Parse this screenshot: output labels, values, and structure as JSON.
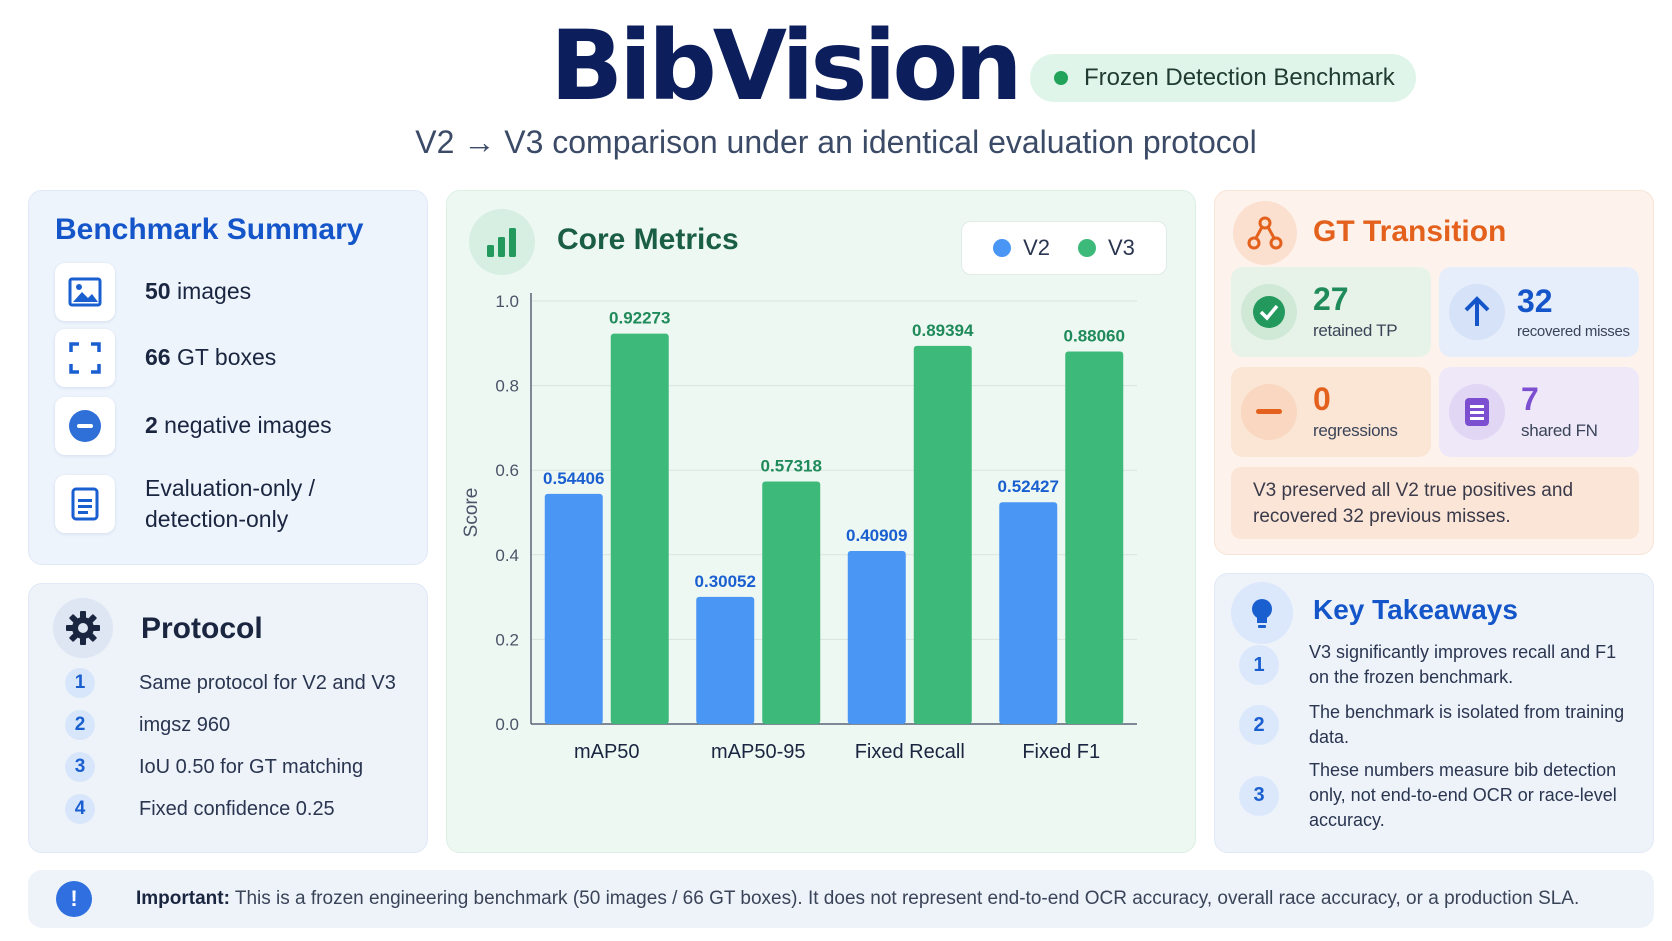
{
  "header": {
    "title": "BibVision",
    "badge": "Frozen Detection Benchmark",
    "subtitle": "V2 → V3 comparison under an identical evaluation protocol"
  },
  "summary": {
    "title": "Benchmark Summary",
    "items": [
      {
        "icon": "image-icon",
        "bold": "50",
        "text": " images"
      },
      {
        "icon": "bounding-box-icon",
        "bold": "66",
        "text": " GT boxes"
      },
      {
        "icon": "minus-icon",
        "bold": "2",
        "text": " negative images"
      },
      {
        "icon": "document-icon",
        "line1": "Evaluation-only /",
        "line2": "detection-only"
      }
    ]
  },
  "protocol": {
    "title": "Protocol",
    "steps": [
      {
        "num": "1",
        "text": "Same protocol for V2 and V3"
      },
      {
        "num": "2",
        "text": "imgsz 960"
      },
      {
        "num": "3",
        "text": "IoU 0.50 for GT matching"
      },
      {
        "num": "4",
        "text": "Fixed confidence 0.25"
      }
    ]
  },
  "metrics": {
    "title": "Core Metrics",
    "legend": [
      "V2",
      "V3"
    ]
  },
  "chart_data": {
    "type": "bar",
    "categories": [
      "mAP50",
      "mAP50-95",
      "Fixed Recall",
      "Fixed F1"
    ],
    "series": [
      {
        "name": "V2",
        "values": [
          0.54406,
          0.30052,
          0.40909,
          0.52427
        ],
        "labels": [
          "0.54406",
          "0.30052",
          "0.40909",
          "0.52427"
        ],
        "color": "#4a96f5"
      },
      {
        "name": "V3",
        "values": [
          0.92273,
          0.57318,
          0.89394,
          0.8806
        ],
        "labels": [
          "0.92273",
          "0.57318",
          "0.89394",
          "0.88060"
        ],
        "color": "#3dba7a"
      }
    ],
    "ylabel": "Score",
    "ylim": [
      0,
      1.0
    ],
    "yticks": [
      "0.0",
      "0.2",
      "0.4",
      "0.6",
      "0.8",
      "1.0"
    ],
    "grid": true,
    "legend_position": "top-right"
  },
  "gt_transition": {
    "title": "GT Transition",
    "tiles": [
      {
        "icon": "check-icon",
        "value": "27",
        "label": "retained TP",
        "color": "#1f8a5a"
      },
      {
        "icon": "arrow-up-icon",
        "value": "32",
        "label": "recovered misses",
        "color": "#1456c9"
      },
      {
        "icon": "minus-icon",
        "value": "0",
        "label": "regressions",
        "color": "#e3611c"
      },
      {
        "icon": "list-icon",
        "value": "7",
        "label": "shared FN",
        "color": "#7b4fd0"
      }
    ],
    "note": "V3 preserved all V2 true positives and recovered 32 previous misses."
  },
  "takeaways": {
    "title": "Key Takeaways",
    "items": [
      {
        "num": "1",
        "text": "V3 significantly improves recall and F1 on the frozen benchmark."
      },
      {
        "num": "2",
        "text": "The benchmark is isolated from training data."
      },
      {
        "num": "3",
        "text": "These numbers measure bib detection only, not end-to-end OCR or race-level accuracy."
      }
    ]
  },
  "footer": {
    "icon": "exclamation-icon",
    "bold": "Important:",
    "text": " This is a frozen engineering benchmark (50 images / 66 GT boxes). It does not represent end-to-end OCR accuracy, overall race accuracy, or a production SLA."
  }
}
